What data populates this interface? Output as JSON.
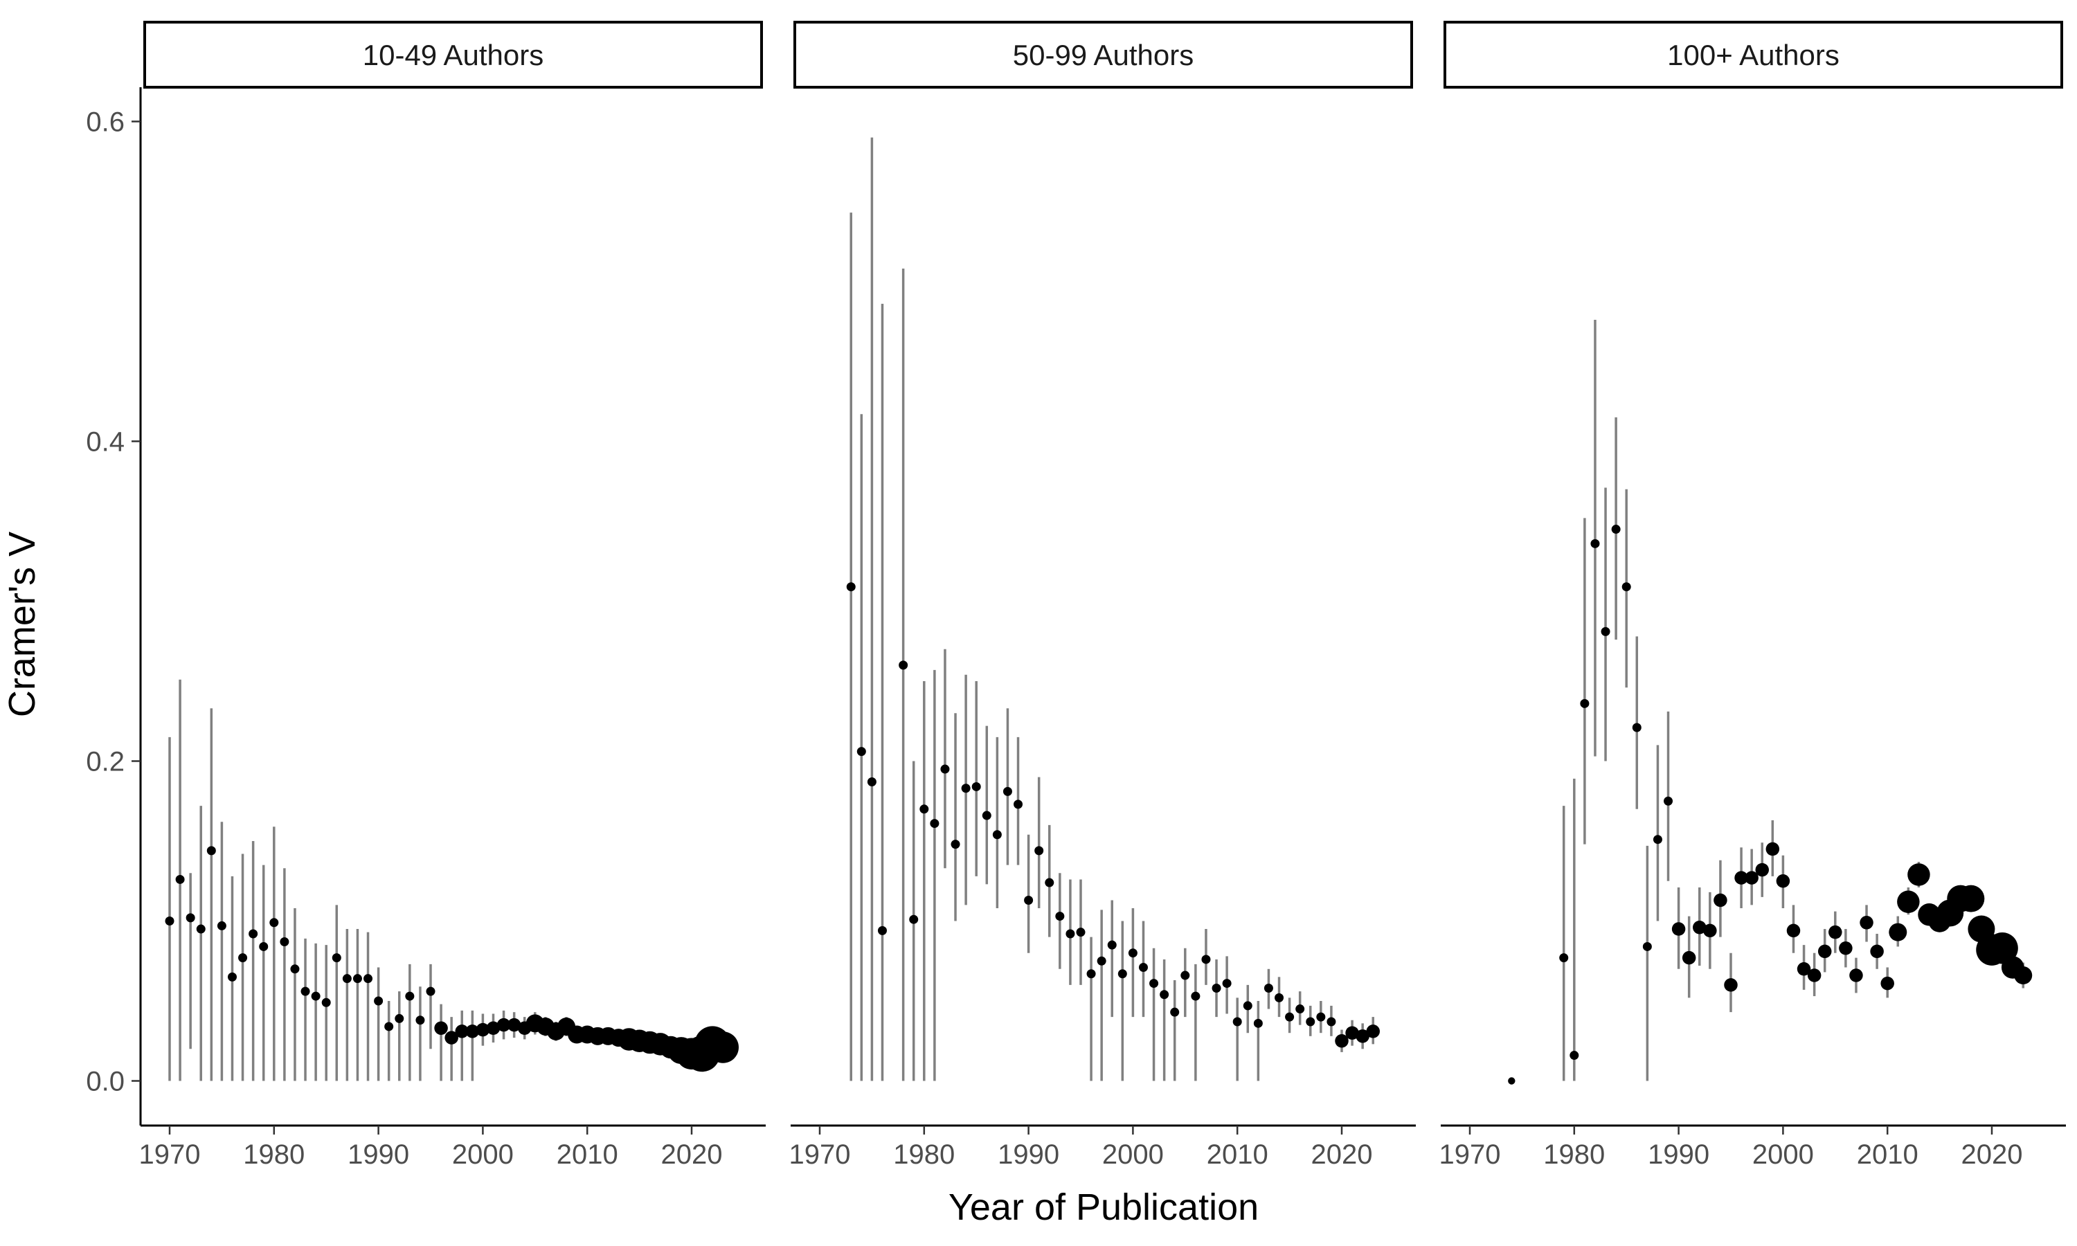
{
  "chart_data": {
    "type": "scatter",
    "subtype": "point-range faceted",
    "xlabel": "Year of Publication",
    "ylabel": "Cramer's V",
    "xlim": [
      1968,
      2025
    ],
    "ylim": [
      -0.03,
      0.62
    ],
    "x_ticks": [
      1970,
      1980,
      1990,
      2000,
      2010,
      2020
    ],
    "y_ticks": [
      0.0,
      0.2,
      0.4,
      0.6
    ],
    "y_tick_labels": [
      "0.0",
      "0.2",
      "0.4",
      "0.6"
    ],
    "grid": false,
    "legend": "none",
    "colors": {
      "point": "#000000",
      "errorbar": "#808080",
      "axis": "#000000"
    },
    "facets": [
      {
        "label": "10-49 Authors",
        "points": [
          [
            1970,
            0.1,
            0.0,
            0.215,
            1
          ],
          [
            1971,
            0.126,
            0.0,
            0.251,
            1
          ],
          [
            1972,
            0.102,
            0.02,
            0.13,
            1
          ],
          [
            1973,
            0.095,
            0.0,
            0.172,
            1
          ],
          [
            1974,
            0.144,
            0.0,
            0.233,
            1
          ],
          [
            1975,
            0.097,
            0.0,
            0.162,
            1
          ],
          [
            1976,
            0.065,
            0.0,
            0.128,
            1
          ],
          [
            1977,
            0.077,
            0.0,
            0.142,
            1
          ],
          [
            1978,
            0.092,
            0.0,
            0.15,
            1
          ],
          [
            1979,
            0.084,
            0.0,
            0.135,
            1
          ],
          [
            1980,
            0.099,
            0.0,
            0.159,
            1
          ],
          [
            1981,
            0.087,
            0.0,
            0.133,
            1
          ],
          [
            1982,
            0.07,
            0.0,
            0.108,
            1
          ],
          [
            1983,
            0.056,
            0.0,
            0.089,
            1
          ],
          [
            1984,
            0.053,
            0.0,
            0.086,
            1
          ],
          [
            1985,
            0.049,
            0.0,
            0.085,
            1
          ],
          [
            1986,
            0.077,
            0.0,
            0.11,
            1
          ],
          [
            1987,
            0.064,
            0.0,
            0.095,
            1
          ],
          [
            1988,
            0.064,
            0.0,
            0.095,
            1
          ],
          [
            1989,
            0.064,
            0.0,
            0.093,
            1
          ],
          [
            1990,
            0.05,
            0.0,
            0.071,
            1
          ],
          [
            1991,
            0.034,
            0.0,
            0.05,
            1
          ],
          [
            1992,
            0.039,
            0.0,
            0.056,
            1
          ],
          [
            1993,
            0.053,
            0.0,
            0.073,
            1
          ],
          [
            1994,
            0.038,
            0.0,
            0.059,
            1
          ],
          [
            1995,
            0.056,
            0.02,
            0.073,
            1
          ],
          [
            1996,
            0.033,
            0.0,
            0.048,
            1.5
          ],
          [
            1997,
            0.027,
            0.0,
            0.04,
            1.5
          ],
          [
            1998,
            0.031,
            0.0,
            0.044,
            1.5
          ],
          [
            1999,
            0.031,
            0.0,
            0.044,
            1.5
          ],
          [
            2000,
            0.032,
            0.022,
            0.042,
            1.5
          ],
          [
            2001,
            0.033,
            0.024,
            0.042,
            1.5
          ],
          [
            2002,
            0.035,
            0.026,
            0.044,
            1.5
          ],
          [
            2003,
            0.035,
            0.027,
            0.043,
            1.5
          ],
          [
            2004,
            0.033,
            0.026,
            0.04,
            1.5
          ],
          [
            2005,
            0.036,
            0.029,
            0.043,
            2
          ],
          [
            2006,
            0.034,
            0.028,
            0.04,
            2
          ],
          [
            2007,
            0.031,
            0.025,
            0.037,
            2
          ],
          [
            2008,
            0.034,
            0.028,
            0.04,
            2
          ],
          [
            2009,
            0.029,
            0.024,
            0.034,
            2
          ],
          [
            2010,
            0.029,
            0.024,
            0.034,
            2
          ],
          [
            2011,
            0.028,
            0.024,
            0.032,
            2
          ],
          [
            2012,
            0.028,
            0.024,
            0.032,
            2
          ],
          [
            2013,
            0.027,
            0.023,
            0.031,
            2
          ],
          [
            2014,
            0.026,
            0.022,
            0.03,
            2.5
          ],
          [
            2015,
            0.025,
            0.022,
            0.028,
            2.5
          ],
          [
            2016,
            0.024,
            0.021,
            0.027,
            2.5
          ],
          [
            2017,
            0.023,
            0.02,
            0.026,
            2.5
          ],
          [
            2018,
            0.021,
            0.018,
            0.024,
            2.5
          ],
          [
            2019,
            0.019,
            0.016,
            0.022,
            3
          ],
          [
            2020,
            0.017,
            0.014,
            0.02,
            3.5
          ],
          [
            2021,
            0.017,
            0.014,
            0.02,
            4
          ],
          [
            2022,
            0.023,
            0.02,
            0.026,
            4
          ],
          [
            2023,
            0.021,
            0.018,
            0.024,
            3.5
          ]
        ]
      },
      {
        "label": "50-99 Authors",
        "points": [
          [
            1973,
            0.309,
            0.0,
            0.543,
            1
          ],
          [
            1974,
            0.206,
            0.0,
            0.417,
            1
          ],
          [
            1975,
            0.187,
            0.0,
            0.59,
            1
          ],
          [
            1976,
            0.094,
            0.0,
            0.486,
            1
          ],
          [
            1978,
            0.26,
            0.0,
            0.508,
            1
          ],
          [
            1979,
            0.101,
            0.0,
            0.2,
            1
          ],
          [
            1980,
            0.17,
            0.0,
            0.25,
            1
          ],
          [
            1981,
            0.161,
            0.0,
            0.257,
            1
          ],
          [
            1982,
            0.195,
            0.133,
            0.27,
            1
          ],
          [
            1983,
            0.148,
            0.1,
            0.23,
            1
          ],
          [
            1984,
            0.183,
            0.11,
            0.254,
            1
          ],
          [
            1985,
            0.184,
            0.128,
            0.25,
            1
          ],
          [
            1986,
            0.166,
            0.123,
            0.222,
            1
          ],
          [
            1987,
            0.154,
            0.108,
            0.215,
            1
          ],
          [
            1988,
            0.181,
            0.135,
            0.233,
            1
          ],
          [
            1989,
            0.173,
            0.135,
            0.215,
            1
          ],
          [
            1990,
            0.113,
            0.08,
            0.154,
            1
          ],
          [
            1991,
            0.144,
            0.108,
            0.19,
            1
          ],
          [
            1992,
            0.124,
            0.09,
            0.16,
            1
          ],
          [
            1993,
            0.103,
            0.07,
            0.13,
            1
          ],
          [
            1994,
            0.092,
            0.06,
            0.126,
            1
          ],
          [
            1995,
            0.093,
            0.06,
            0.126,
            1
          ],
          [
            1996,
            0.067,
            0.0,
            0.09,
            1
          ],
          [
            1997,
            0.075,
            0.0,
            0.107,
            1
          ],
          [
            1998,
            0.085,
            0.04,
            0.113,
            1
          ],
          [
            1999,
            0.067,
            0.0,
            0.1,
            1
          ],
          [
            2000,
            0.08,
            0.04,
            0.108,
            1
          ],
          [
            2001,
            0.071,
            0.04,
            0.1,
            1
          ],
          [
            2002,
            0.061,
            0.0,
            0.083,
            1
          ],
          [
            2003,
            0.054,
            0.0,
            0.076,
            1
          ],
          [
            2004,
            0.043,
            0.0,
            0.063,
            1
          ],
          [
            2005,
            0.066,
            0.04,
            0.083,
            1
          ],
          [
            2006,
            0.053,
            0.0,
            0.073,
            1
          ],
          [
            2007,
            0.076,
            0.06,
            0.095,
            1
          ],
          [
            2008,
            0.058,
            0.04,
            0.076,
            1
          ],
          [
            2009,
            0.061,
            0.042,
            0.078,
            1
          ],
          [
            2010,
            0.037,
            0.0,
            0.052,
            1
          ],
          [
            2011,
            0.047,
            0.03,
            0.06,
            1
          ],
          [
            2012,
            0.036,
            0.0,
            0.05,
            1
          ],
          [
            2013,
            0.058,
            0.045,
            0.07,
            1
          ],
          [
            2014,
            0.052,
            0.04,
            0.065,
            1
          ],
          [
            2015,
            0.04,
            0.03,
            0.052,
            1
          ],
          [
            2016,
            0.045,
            0.035,
            0.056,
            1
          ],
          [
            2017,
            0.037,
            0.028,
            0.047,
            1
          ],
          [
            2018,
            0.04,
            0.03,
            0.05,
            1
          ],
          [
            2019,
            0.037,
            0.028,
            0.047,
            1
          ],
          [
            2020,
            0.025,
            0.018,
            0.032,
            1.5
          ],
          [
            2021,
            0.03,
            0.022,
            0.038,
            1.5
          ],
          [
            2022,
            0.028,
            0.02,
            0.036,
            1.5
          ],
          [
            2023,
            0.031,
            0.023,
            0.04,
            1.5
          ]
        ]
      },
      {
        "label": "100+ Authors",
        "points": [
          [
            1974,
            0.0,
            0.0,
            0.0,
            0.8
          ],
          [
            1979,
            0.077,
            0.0,
            0.172,
            1
          ],
          [
            1980,
            0.016,
            0.0,
            0.189,
            1
          ],
          [
            1981,
            0.236,
            0.148,
            0.352,
            1
          ],
          [
            1982,
            0.336,
            0.203,
            0.476,
            1
          ],
          [
            1983,
            0.281,
            0.2,
            0.371,
            1
          ],
          [
            1984,
            0.345,
            0.276,
            0.415,
            1
          ],
          [
            1985,
            0.309,
            0.246,
            0.37,
            1
          ],
          [
            1986,
            0.221,
            0.17,
            0.278,
            1
          ],
          [
            1987,
            0.084,
            0.0,
            0.147,
            1
          ],
          [
            1988,
            0.151,
            0.1,
            0.21,
            1
          ],
          [
            1989,
            0.175,
            0.125,
            0.231,
            1
          ],
          [
            1990,
            0.095,
            0.07,
            0.121,
            1.5
          ],
          [
            1991,
            0.077,
            0.052,
            0.103,
            1.5
          ],
          [
            1992,
            0.096,
            0.072,
            0.121,
            1.5
          ],
          [
            1993,
            0.094,
            0.07,
            0.118,
            1.5
          ],
          [
            1994,
            0.113,
            0.09,
            0.138,
            1.5
          ],
          [
            1995,
            0.06,
            0.043,
            0.08,
            1.5
          ],
          [
            1996,
            0.127,
            0.108,
            0.146,
            1.5
          ],
          [
            1997,
            0.127,
            0.11,
            0.145,
            1.5
          ],
          [
            1998,
            0.132,
            0.115,
            0.149,
            1.5
          ],
          [
            1999,
            0.145,
            0.128,
            0.163,
            1.5
          ],
          [
            2000,
            0.125,
            0.108,
            0.141,
            1.5
          ],
          [
            2001,
            0.094,
            0.08,
            0.11,
            1.5
          ],
          [
            2002,
            0.07,
            0.057,
            0.085,
            1.5
          ],
          [
            2003,
            0.066,
            0.053,
            0.08,
            1.5
          ],
          [
            2004,
            0.081,
            0.068,
            0.095,
            1.5
          ],
          [
            2005,
            0.093,
            0.08,
            0.106,
            1.5
          ],
          [
            2006,
            0.083,
            0.071,
            0.095,
            1.5
          ],
          [
            2007,
            0.066,
            0.055,
            0.077,
            1.5
          ],
          [
            2008,
            0.099,
            0.087,
            0.11,
            1.5
          ],
          [
            2009,
            0.081,
            0.07,
            0.092,
            1.5
          ],
          [
            2010,
            0.061,
            0.052,
            0.071,
            1.5
          ],
          [
            2011,
            0.093,
            0.084,
            0.103,
            2
          ],
          [
            2012,
            0.112,
            0.104,
            0.121,
            2.5
          ],
          [
            2013,
            0.129,
            0.121,
            0.137,
            2.5
          ],
          [
            2014,
            0.104,
            0.097,
            0.111,
            2.5
          ],
          [
            2015,
            0.1,
            0.093,
            0.107,
            2.5
          ],
          [
            2016,
            0.105,
            0.099,
            0.111,
            3
          ],
          [
            2017,
            0.114,
            0.108,
            0.12,
            3
          ],
          [
            2018,
            0.114,
            0.108,
            0.12,
            3
          ],
          [
            2019,
            0.095,
            0.089,
            0.101,
            3
          ],
          [
            2020,
            0.082,
            0.076,
            0.088,
            3.5
          ],
          [
            2021,
            0.083,
            0.078,
            0.088,
            3.5
          ],
          [
            2022,
            0.071,
            0.066,
            0.076,
            2.5
          ],
          [
            2023,
            0.066,
            0.058,
            0.074,
            2
          ]
        ]
      }
    ]
  }
}
